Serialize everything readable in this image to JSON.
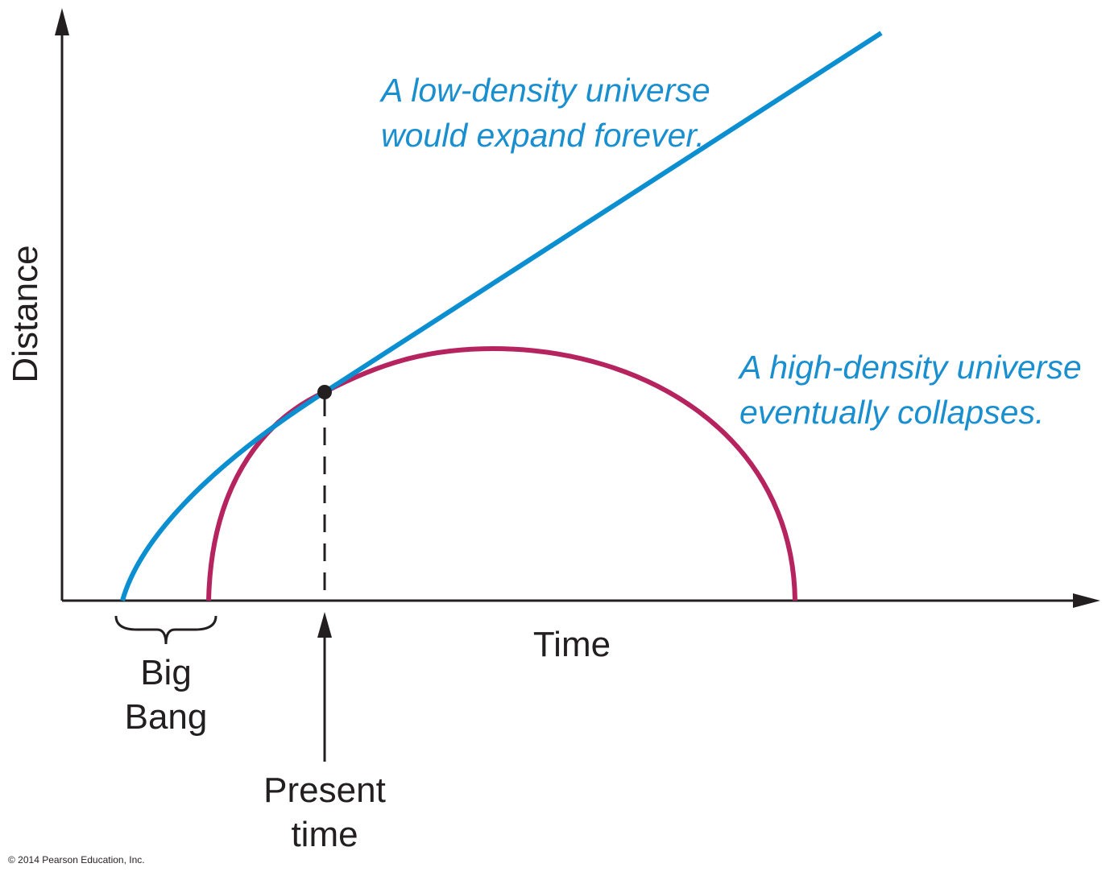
{
  "axes": {
    "y_label": "Distance",
    "x_label": "Time"
  },
  "curves": [
    {
      "label": [
        "A low-density universe",
        "would expand forever."
      ]
    },
    {
      "label": [
        "A high-density universe",
        "eventually collapses."
      ]
    }
  ],
  "markers": {
    "big_bang": [
      "Big",
      "Bang"
    ],
    "present": [
      "Present",
      "time"
    ]
  },
  "footer": "© 2014 Pearson Education, Inc."
}
